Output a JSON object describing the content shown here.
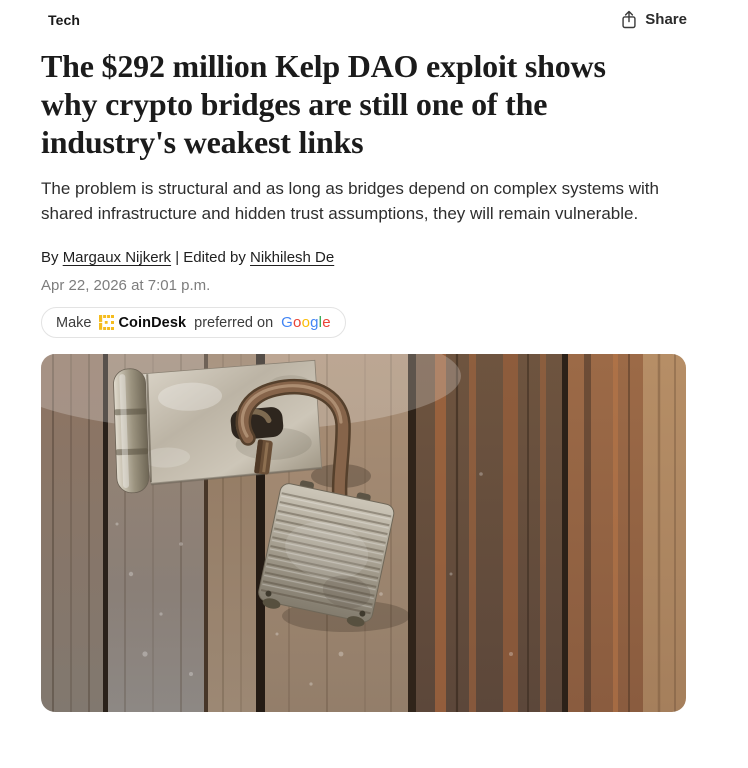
{
  "topbar": {
    "category": "Tech",
    "share": {
      "label": "Share"
    }
  },
  "article": {
    "headline": "The $292 million Kelp DAO exploit shows why crypto bridges are still one of the industry's weakest links",
    "subheadline": "The problem is structural and as long as bridges depend on complex systems with shared infrastructure and hidden trust assumptions, they will remain vulnerable.",
    "byline": {
      "by_prefix": "By ",
      "author": "Margaux Nijkerk",
      "separator": " | ",
      "edited_prefix": "Edited by ",
      "editor": "Nikhilesh De"
    },
    "published": "Apr 22, 2026 at 7:01 p.m."
  },
  "preferred_pill": {
    "make_label": "Make",
    "brand": "CoinDesk",
    "middle_label": "preferred on",
    "brand_color": "#F5BC1E",
    "google_letters": [
      {
        "ch": "G",
        "color": "#4285F4"
      },
      {
        "ch": "o",
        "color": "#EA4335"
      },
      {
        "ch": "o",
        "color": "#FBBC05"
      },
      {
        "ch": "g",
        "color": "#4285F4"
      },
      {
        "ch": "l",
        "color": "#34A853"
      },
      {
        "ch": "e",
        "color": "#EA4335"
      }
    ]
  },
  "hero_image": {
    "aria_label": "Old rusty padlock securing a galvanized metal hasp on a weathered wooden door"
  }
}
